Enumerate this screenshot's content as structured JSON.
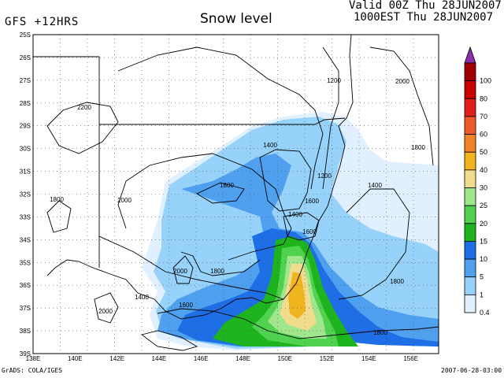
{
  "header": {
    "model_label": "GFS +12HRS",
    "title": "Snow level",
    "valid_time": "Valid 00Z Thu 28JUN2007",
    "local_time": "1000EST Thu 28JUN2007"
  },
  "footer": {
    "credit": "GrADS: COLA/IGES",
    "timestamp": "2007-06-28-03:00"
  },
  "map": {
    "lat_labels": [
      "25S",
      "26S",
      "27S",
      "28S",
      "29S",
      "30S",
      "31S",
      "32S",
      "33S",
      "34S",
      "35S",
      "36S",
      "37S",
      "38S",
      "39S"
    ],
    "lon_labels": [
      "138E",
      "140E",
      "142E",
      "144E",
      "146E",
      "148E",
      "150E",
      "152E",
      "154E",
      "156E"
    ],
    "contour_labels": [
      "2200",
      "1200",
      "2000",
      "1800",
      "1400",
      "1200",
      "1400",
      "1800",
      "2000",
      "1800",
      "1600",
      "1400",
      "1600",
      "1800",
      "2000",
      "2000",
      "1800",
      "1600",
      "1800",
      "1400"
    ]
  },
  "colorbar": {
    "arrow_color": "#8c2fa8",
    "levels": [
      {
        "label": "100",
        "color": "#a00000"
      },
      {
        "label": "80",
        "color": "#c80000"
      },
      {
        "label": "70",
        "color": "#e01e1e"
      },
      {
        "label": "60",
        "color": "#f05a28"
      },
      {
        "label": "50",
        "color": "#f08228"
      },
      {
        "label": "40",
        "color": "#f0b41e"
      },
      {
        "label": "30",
        "color": "#f0dc8c"
      },
      {
        "label": "25",
        "color": "#a0e68c"
      },
      {
        "label": "20",
        "color": "#50d250"
      },
      {
        "label": "15",
        "color": "#1eb41e"
      },
      {
        "label": "10",
        "color": "#1e6ee6"
      },
      {
        "label": "5",
        "color": "#50a0f0"
      },
      {
        "label": "1",
        "color": "#96d2fa"
      },
      {
        "label": "0.4",
        "color": "#e1f0ff"
      }
    ]
  }
}
